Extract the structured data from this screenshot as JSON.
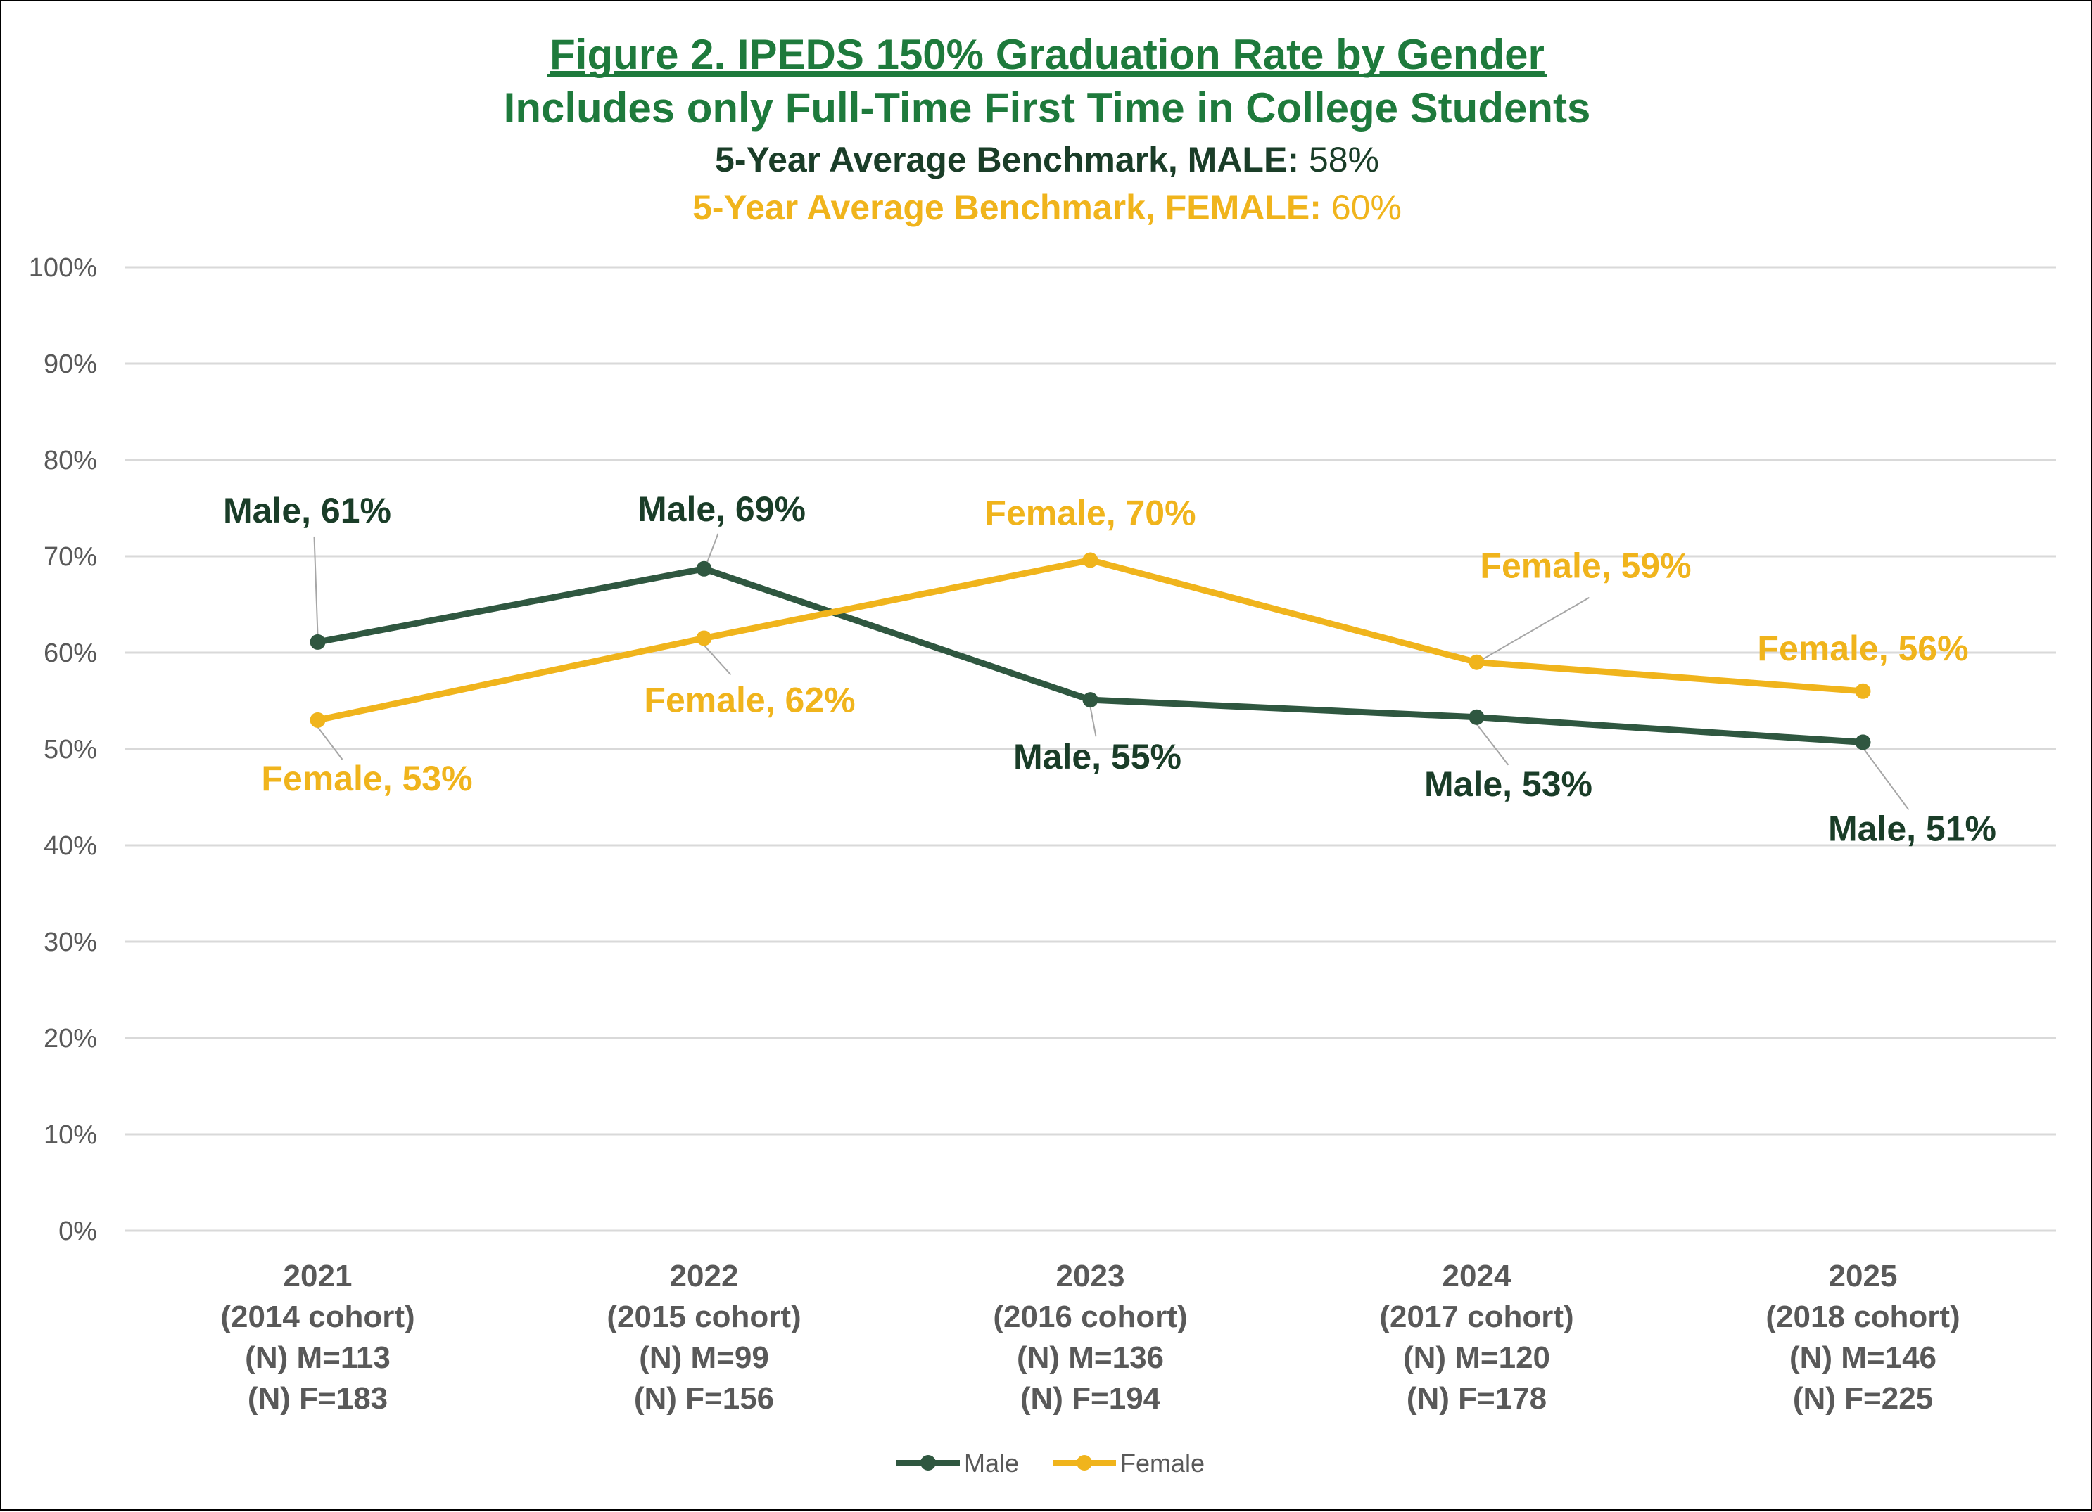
{
  "chart_data": {
    "type": "line",
    "title": "Figure 2. IPEDS 150% Graduation Rate by Gender",
    "subtitle": "Includes only Full-Time First Time in College Students",
    "benchmarks": [
      {
        "label": "5-Year Average Benchmark, MALE:",
        "value": "58%",
        "color": "#1a3d28"
      },
      {
        "label": "5-Year Average Benchmark, FEMALE:",
        "value": "60%",
        "color": "#f0b41c"
      }
    ],
    "ylim": [
      0,
      100
    ],
    "yticks": [
      "0%",
      "10%",
      "20%",
      "30%",
      "40%",
      "50%",
      "60%",
      "70%",
      "80%",
      "90%",
      "100%"
    ],
    "categories": [
      [
        "2021",
        "(2014 cohort)",
        "(N) M=113",
        "(N) F=183"
      ],
      [
        "2022",
        "(2015 cohort)",
        "(N) M=99",
        "(N) F=156"
      ],
      [
        "2023",
        "(2016 cohort)",
        "(N) M=136",
        "(N) F=194"
      ],
      [
        "2024",
        "(2017 cohort)",
        "(N) M=120",
        "(N) F=178"
      ],
      [
        "2025",
        "(2018 cohort)",
        "(N) M=146",
        "(N) F=225"
      ]
    ],
    "series": [
      {
        "name": "Male",
        "color": "#2f5740",
        "label_color": "#1a3d28",
        "values": [
          61.1,
          68.7,
          55.1,
          53.3,
          50.7
        ],
        "labels": [
          "Male, 61%",
          "Male, 69%",
          "Male, 55%",
          "Male, 53%",
          "Male, 51%"
        ]
      },
      {
        "name": "Female",
        "color": "#f0b41c",
        "label_color": "#f0b41c",
        "values": [
          53.0,
          61.5,
          69.6,
          59.0,
          56.0
        ],
        "labels": [
          "Female, 53%",
          "Female, 62%",
          "Female, 70%",
          "Female, 59%",
          "Female, 56%"
        ]
      }
    ],
    "legend": [
      "Male",
      "Female"
    ],
    "legend_position": "bottom",
    "grid": true
  }
}
